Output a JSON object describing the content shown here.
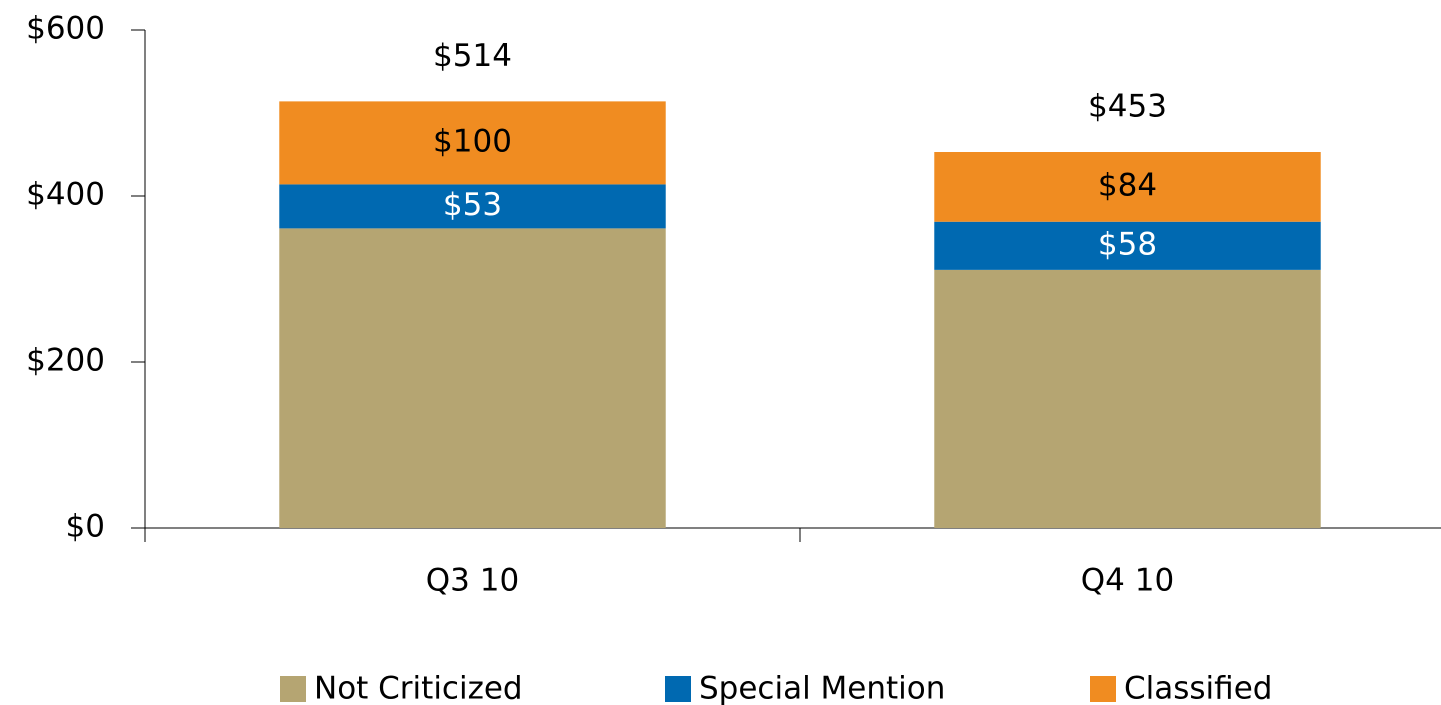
{
  "chart_data": {
    "type": "stacked_bar",
    "categories": [
      "Q3 10",
      "Q4 10"
    ],
    "series": [
      {
        "name": "Not Criticized",
        "color": "#b5a572",
        "values": [
          361,
          311
        ]
      },
      {
        "name": "Special Mention",
        "color": "#0069b1",
        "values": [
          53,
          58
        ],
        "value_labels": [
          "$53",
          "$58"
        ],
        "label_color": "#ffffff"
      },
      {
        "name": "Classified",
        "color": "#f08c21",
        "values": [
          100,
          84
        ],
        "value_labels": [
          "$100",
          "$84"
        ],
        "label_color": "#000000"
      }
    ],
    "totals": {
      "values": [
        514,
        453
      ],
      "value_labels": [
        "$514",
        "$453"
      ]
    },
    "ylim": [
      0,
      600
    ],
    "yticks": [
      {
        "value": 0,
        "label": "$0"
      },
      {
        "value": 200,
        "label": "$200"
      },
      {
        "value": 400,
        "label": "$400"
      },
      {
        "value": 600,
        "label": "$600"
      }
    ],
    "legend": "bottom"
  }
}
